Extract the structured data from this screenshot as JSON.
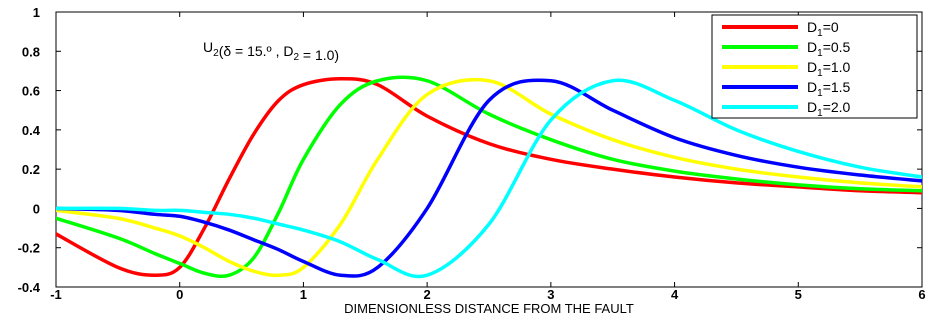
{
  "chart_data": {
    "type": "line",
    "title": "",
    "xlabel": "DIMENSIONLESS DISTANCE FROM THE FAULT",
    "ylabel": "",
    "xlim": [
      -1,
      6
    ],
    "ylim": [
      -0.4,
      1
    ],
    "xticks": [
      -1,
      0,
      1,
      2,
      3,
      4,
      5,
      6
    ],
    "yticks": [
      -0.4,
      -0.2,
      0,
      0.2,
      0.4,
      0.6,
      0.8,
      1
    ],
    "xtick_labels": [
      "-1",
      "0",
      "1",
      "2",
      "3",
      "4",
      "5",
      "6"
    ],
    "ytick_labels": [
      "-0.4",
      "-0.2",
      "0",
      "0.2",
      "0.4",
      "0.6",
      "0.8",
      "1"
    ],
    "grid": false,
    "legend_position": "top-right",
    "annotation": {
      "main": "U",
      "sub": "2",
      "rest": "(δ = 15.º , D",
      "sub2": "2",
      "tail": " = 1.0)"
    },
    "x": [
      -1.0,
      -0.5,
      -0.2,
      0.0,
      0.2,
      0.4,
      0.6,
      0.8,
      1.0,
      1.3,
      1.6,
      2.0,
      2.5,
      3.0,
      3.5,
      4.0,
      4.5,
      5.0,
      5.5,
      6.0
    ],
    "series": [
      {
        "name": "D",
        "name_sub": "1",
        "name_tail": "=0",
        "color": "#ff0000",
        "values": [
          -0.13,
          -0.3,
          -0.34,
          -0.3,
          -0.1,
          0.15,
          0.38,
          0.55,
          0.63,
          0.66,
          0.63,
          0.47,
          0.33,
          0.25,
          0.2,
          0.16,
          0.13,
          0.11,
          0.09,
          0.08
        ]
      },
      {
        "name": "D",
        "name_sub": "1",
        "name_tail": "=0.5",
        "color": "#00ff00",
        "values": [
          -0.05,
          -0.15,
          -0.23,
          -0.28,
          -0.33,
          -0.34,
          -0.25,
          -0.02,
          0.25,
          0.53,
          0.65,
          0.65,
          0.48,
          0.35,
          0.25,
          0.19,
          0.15,
          0.12,
          0.1,
          0.09
        ]
      },
      {
        "name": "D",
        "name_sub": "1",
        "name_tail": "=1.0",
        "color": "#ffff00",
        "values": [
          -0.01,
          -0.05,
          -0.1,
          -0.14,
          -0.2,
          -0.27,
          -0.32,
          -0.34,
          -0.3,
          -0.08,
          0.25,
          0.58,
          0.65,
          0.48,
          0.35,
          0.26,
          0.2,
          0.16,
          0.13,
          0.11
        ]
      },
      {
        "name": "D",
        "name_sub": "1",
        "name_tail": "=1.5",
        "color": "#0000ff",
        "values": [
          0.0,
          -0.01,
          -0.03,
          -0.04,
          -0.07,
          -0.11,
          -0.16,
          -0.21,
          -0.27,
          -0.34,
          -0.3,
          0.0,
          0.55,
          0.65,
          0.5,
          0.36,
          0.27,
          0.21,
          0.17,
          0.14
        ]
      },
      {
        "name": "D",
        "name_sub": "1",
        "name_tail": "=2.0",
        "color": "#00ffff",
        "values": [
          0.0,
          0.0,
          -0.01,
          -0.01,
          -0.02,
          -0.03,
          -0.05,
          -0.08,
          -0.11,
          -0.17,
          -0.26,
          -0.34,
          -0.08,
          0.45,
          0.65,
          0.55,
          0.4,
          0.29,
          0.21,
          0.16
        ]
      }
    ]
  }
}
